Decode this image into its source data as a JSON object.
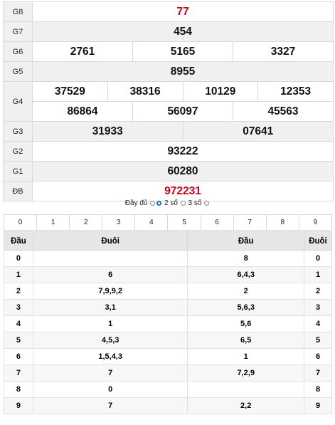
{
  "prizes": [
    {
      "label": "G8",
      "lines": [
        [
          "77"
        ]
      ],
      "red": true
    },
    {
      "label": "G7",
      "lines": [
        [
          "454"
        ]
      ]
    },
    {
      "label": "G6",
      "lines": [
        [
          "2761",
          "5165",
          "3327"
        ]
      ]
    },
    {
      "label": "G5",
      "lines": [
        [
          "8955"
        ]
      ]
    },
    {
      "label": "G4",
      "lines": [
        [
          "37529",
          "38316",
          "10129",
          "12353"
        ],
        [
          "86864",
          "56097",
          "45563"
        ]
      ]
    },
    {
      "label": "G3",
      "lines": [
        [
          "31933",
          "07641"
        ]
      ]
    },
    {
      "label": "G2",
      "lines": [
        [
          "93222"
        ]
      ]
    },
    {
      "label": "G1",
      "lines": [
        [
          "60280"
        ]
      ]
    },
    {
      "label": "ĐB",
      "lines": [
        [
          "972231"
        ]
      ],
      "red": true
    }
  ],
  "options": {
    "full_label": "Đầy đủ",
    "two_label": "2 số",
    "three_label": "3 số",
    "selected": "2 số"
  },
  "digits": [
    "0",
    "1",
    "2",
    "3",
    "4",
    "5",
    "6",
    "7",
    "8",
    "9"
  ],
  "dd_table": {
    "headers": [
      "Đầu",
      "Đuôi",
      "Đầu",
      "Đuôi"
    ],
    "rows": [
      [
        "0",
        "",
        "8",
        "0"
      ],
      [
        "1",
        "6",
        "6,4,3",
        "1"
      ],
      [
        "2",
        "7,9,9,2",
        "2",
        "2"
      ],
      [
        "3",
        "3,1",
        "5,6,3",
        "3"
      ],
      [
        "4",
        "1",
        "5,6",
        "4"
      ],
      [
        "5",
        "4,5,3",
        "6,5",
        "5"
      ],
      [
        "6",
        "1,5,4,3",
        "1",
        "6"
      ],
      [
        "7",
        "7",
        "7,2,9",
        "7"
      ],
      [
        "8",
        "0",
        "",
        "8"
      ],
      [
        "9",
        "7",
        "2,2",
        "9"
      ]
    ]
  },
  "colors": {
    "red": "#d0021b",
    "shade": "#f0f0f0",
    "header": "#e6e6e6",
    "radio_selected": "#1f6fd6"
  }
}
